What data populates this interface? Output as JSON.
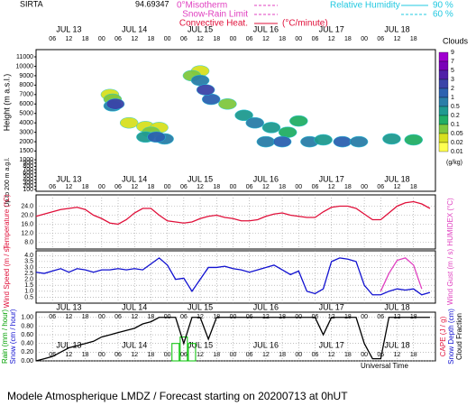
{
  "header": {
    "station": "SIRTA",
    "coord": "94.69347",
    "isotherm": "0°Misotherm",
    "snow_rain": "Snow-Rain Limit",
    "convective": "Convective Heat.",
    "convective_unit": "(°C/minute)",
    "rh_title": "Relative Humidity",
    "rh_levels": [
      "90 %",
      "60 %"
    ]
  },
  "time_axis": {
    "xlim": [
      0,
      146
    ],
    "xlabel": "Universal Time",
    "day_ticks": [
      {
        "value": 12,
        "label": "JUL 13"
      },
      {
        "value": 36,
        "label": "JUL 14"
      },
      {
        "value": 60,
        "label": "JUL 15"
      },
      {
        "value": 84,
        "label": "JUL 16"
      },
      {
        "value": 108,
        "label": "JUL 17"
      },
      {
        "value": 132,
        "label": "JUL 18"
      }
    ],
    "hour_ticks": [
      {
        "value": 6,
        "label": "06"
      },
      {
        "value": 12,
        "label": "12"
      },
      {
        "value": 18,
        "label": "18"
      },
      {
        "value": 24,
        "label": "00"
      },
      {
        "value": 30,
        "label": "06"
      },
      {
        "value": 36,
        "label": "12"
      },
      {
        "value": 42,
        "label": "18"
      },
      {
        "value": 48,
        "label": "00"
      },
      {
        "value": 54,
        "label": "06"
      },
      {
        "value": 60,
        "label": "12"
      },
      {
        "value": 66,
        "label": "18"
      },
      {
        "value": 72,
        "label": "00"
      },
      {
        "value": 78,
        "label": "06"
      },
      {
        "value": 84,
        "label": "12"
      },
      {
        "value": 90,
        "label": "18"
      },
      {
        "value": 96,
        "label": "00"
      },
      {
        "value": 102,
        "label": "06"
      },
      {
        "value": 108,
        "label": "12"
      },
      {
        "value": 114,
        "label": "18"
      },
      {
        "value": 120,
        "label": "00"
      },
      {
        "value": 126,
        "label": "06"
      },
      {
        "value": 132,
        "label": "12"
      },
      {
        "value": 138,
        "label": "18"
      }
    ]
  },
  "chart_data": [
    {
      "type": "heatmap",
      "ylabel": "Height (m a.s.l.)",
      "ylabel2": "Up to 200 m a.g.l.",
      "ylim": [
        100,
        11000
      ],
      "yticks": [
        11000,
        10000,
        9000,
        8000,
        7000,
        6000,
        5000,
        4000,
        3000,
        2000,
        1500,
        1000,
        900,
        800,
        700,
        600,
        500,
        400,
        300,
        200,
        100
      ],
      "colorbar": {
        "title": "Clouds",
        "unit": "(g/kg)",
        "levels": [
          9,
          7,
          5,
          3,
          2,
          1,
          0.5,
          0.2,
          0.1,
          0.05,
          0.02,
          0.01
        ],
        "colors": [
          "#a000d0",
          "#7a00b8",
          "#5020a8",
          "#3a44a8",
          "#2c62b0",
          "#2a7ea8",
          "#1f9a90",
          "#22ae66",
          "#80c840",
          "#d8e020",
          "#ffff50"
        ]
      },
      "cells": [
        {
          "t": 27,
          "h": 7000,
          "q": 0.02
        },
        {
          "t": 28,
          "h": 6500,
          "q": 0.05
        },
        {
          "t": 28,
          "h": 5800,
          "q": 0.5
        },
        {
          "t": 29,
          "h": 6000,
          "q": 2
        },
        {
          "t": 34,
          "h": 4000,
          "q": 0.02
        },
        {
          "t": 40,
          "h": 3600,
          "q": 0.02
        },
        {
          "t": 45,
          "h": 3500,
          "q": 0.02
        },
        {
          "t": 42,
          "h": 3000,
          "q": 0.05
        },
        {
          "t": 40,
          "h": 2500,
          "q": 0.2
        },
        {
          "t": 47,
          "h": 2300,
          "q": 0.5
        },
        {
          "t": 44,
          "h": 2500,
          "q": 1
        },
        {
          "t": 60,
          "h": 9500,
          "q": 0.02
        },
        {
          "t": 57,
          "h": 9000,
          "q": 0.05
        },
        {
          "t": 70,
          "h": 6000,
          "q": 0.05
        },
        {
          "t": 60,
          "h": 8500,
          "q": 0.5
        },
        {
          "t": 64,
          "h": 6500,
          "q": 1
        },
        {
          "t": 62,
          "h": 7500,
          "q": 2
        },
        {
          "t": 76,
          "h": 4800,
          "q": 0.2
        },
        {
          "t": 80,
          "h": 4000,
          "q": 0.5
        },
        {
          "t": 86,
          "h": 3500,
          "q": 0.2
        },
        {
          "t": 92,
          "h": 3000,
          "q": 0.1
        },
        {
          "t": 96,
          "h": 4200,
          "q": 0.1
        },
        {
          "t": 84,
          "h": 2000,
          "q": 0.5
        },
        {
          "t": 90,
          "h": 2000,
          "q": 1
        },
        {
          "t": 100,
          "h": 2000,
          "q": 0.5
        },
        {
          "t": 105,
          "h": 2200,
          "q": 0.2
        },
        {
          "t": 112,
          "h": 2000,
          "q": 1
        },
        {
          "t": 118,
          "h": 2000,
          "q": 0.5
        },
        {
          "t": 130,
          "h": 2300,
          "q": 0.2
        },
        {
          "t": 138,
          "h": 2200,
          "q": 0.1
        }
      ]
    },
    {
      "type": "line",
      "ylabel": "Temperature (°C)",
      "y2label": "HUMIDEX (°C)",
      "ylim": [
        5,
        29
      ],
      "yticks": [
        {
          "value": 24,
          "label": "24.0"
        },
        {
          "value": 20,
          "label": "20.0"
        },
        {
          "value": 16,
          "label": "16.0"
        },
        {
          "value": 12,
          "label": "12.0"
        },
        {
          "value": 8,
          "label": "8.0"
        }
      ],
      "x": [
        0,
        3,
        6,
        9,
        12,
        15,
        18,
        21,
        24,
        27,
        30,
        33,
        36,
        39,
        42,
        45,
        48,
        51,
        54,
        57,
        60,
        63,
        66,
        69,
        72,
        75,
        78,
        81,
        84,
        87,
        90,
        93,
        96,
        99,
        102,
        105,
        108,
        111,
        114,
        117,
        120,
        123,
        126,
        129,
        132,
        135,
        138,
        141,
        144
      ],
      "series": [
        {
          "color": "#e0103a",
          "values": [
            19.5,
            20.5,
            21.5,
            22.5,
            23,
            23.5,
            22.5,
            20,
            18.5,
            16.5,
            16,
            18,
            21,
            23,
            23,
            20,
            17.5,
            17,
            16.5,
            17,
            18.5,
            19.5,
            20,
            19,
            18.5,
            17.5,
            17.5,
            18,
            19.5,
            20.5,
            21,
            20,
            19.5,
            19,
            19,
            21.5,
            23.5,
            24,
            24,
            23,
            20.5,
            18,
            18,
            21,
            24,
            25.5,
            26,
            25,
            23
          ]
        }
      ]
    },
    {
      "type": "line",
      "ylabel": "Wind Speed (m / s)",
      "y2label": "Wind Gust (m / s)",
      "ylim": [
        0,
        4.4
      ],
      "yticks": [
        {
          "value": 4,
          "label": "4.0"
        },
        3.5,
        {
          "value": 3,
          "label": "3.0"
        },
        2.5,
        {
          "value": 2,
          "label": "2.0"
        },
        1.5,
        {
          "value": 1,
          "label": "1.0"
        },
        0.5
      ],
      "x": [
        0,
        3,
        6,
        9,
        12,
        15,
        18,
        21,
        24,
        27,
        30,
        33,
        36,
        39,
        42,
        45,
        48,
        51,
        54,
        57,
        60,
        63,
        66,
        69,
        72,
        75,
        78,
        81,
        84,
        87,
        90,
        93,
        96,
        99,
        102,
        105,
        108,
        111,
        114,
        117,
        120,
        123,
        126,
        129,
        132,
        135,
        138,
        141,
        144
      ],
      "series": [
        {
          "color": "#1010d0",
          "values": [
            2.6,
            2.5,
            2.7,
            2.9,
            2.6,
            2.9,
            2.8,
            2.6,
            2.8,
            2.8,
            2.9,
            2.8,
            2.9,
            2.8,
            3.3,
            3.8,
            3.2,
            2.0,
            2.1,
            1.0,
            2.0,
            3.0,
            3.0,
            3.1,
            2.9,
            2.8,
            2.6,
            2.8,
            3.0,
            3.2,
            2.8,
            2.4,
            2.7,
            1.0,
            0.8,
            1.2,
            3.5,
            3.8,
            3.7,
            3.5,
            1.5,
            0.7,
            0.7,
            1.0,
            1.2,
            1.1,
            1.2,
            0.7,
            0.9
          ]
        },
        {
          "color": "#e040c0",
          "values": [
            null,
            null,
            null,
            null,
            null,
            null,
            null,
            null,
            null,
            null,
            null,
            null,
            null,
            null,
            null,
            null,
            null,
            null,
            null,
            null,
            null,
            null,
            null,
            null,
            null,
            null,
            null,
            null,
            null,
            null,
            null,
            null,
            null,
            null,
            null,
            null,
            null,
            null,
            null,
            null,
            null,
            null,
            1.0,
            2.5,
            3.6,
            3.8,
            3.2,
            1.2,
            null
          ]
        }
      ]
    },
    {
      "type": "line",
      "ylabels": [
        "Rain (mm / hour)",
        "Snow (cm / hour)"
      ],
      "ylabel_colors": [
        "#00a000",
        "#1010d0"
      ],
      "y2labels": [
        "CAPE (J / g)",
        "Snow Depth (cm)",
        "Cloud Fraction"
      ],
      "y2label_colors": [
        "#e0103a",
        "#1010d0",
        "#000000"
      ],
      "ylim": [
        0,
        1.12
      ],
      "yticks": [
        {
          "value": 1,
          "label": "1.00"
        },
        {
          "value": 0.8,
          "label": "0.80"
        },
        {
          "value": 0.6,
          "label": "0.60"
        },
        {
          "value": 0.4,
          "label": "0.40"
        },
        {
          "value": 0.2,
          "label": "0.20"
        },
        {
          "value": 0,
          "label": "0.00"
        }
      ],
      "x": [
        0,
        3,
        6,
        9,
        12,
        15,
        18,
        21,
        24,
        27,
        30,
        33,
        36,
        39,
        42,
        45,
        48,
        51,
        54,
        57,
        60,
        63,
        66,
        69,
        72,
        75,
        78,
        81,
        84,
        87,
        90,
        93,
        96,
        99,
        102,
        105,
        108,
        111,
        114,
        117,
        120,
        123,
        126,
        129,
        132,
        135,
        138,
        141,
        144
      ],
      "series": [
        {
          "color": "#000000",
          "values": [
            0.0,
            0.05,
            0.1,
            0.2,
            0.3,
            0.35,
            0.4,
            0.45,
            0.55,
            0.6,
            0.65,
            0.7,
            0.75,
            0.85,
            0.9,
            1.0,
            1.0,
            1.0,
            0.4,
            1.0,
            1.0,
            0.5,
            1.0,
            1.0,
            1.0,
            1.0,
            1.0,
            1.0,
            1.0,
            1.0,
            1.0,
            1.0,
            1.0,
            1.0,
            1.0,
            0.6,
            1.0,
            1.0,
            1.0,
            1.0,
            0.4,
            0.05,
            0.05,
            1.0,
            1.0,
            1.0,
            1.0,
            1.0,
            1.0
          ]
        }
      ],
      "bars": {
        "color": "#00c000",
        "x": [
          51,
          54,
          57
        ],
        "values": [
          0.4,
          0.55,
          0.4
        ]
      }
    }
  ],
  "footer": "Modele Atmospherique LMDZ / Forecast starting on 20200713 at 0hUT"
}
